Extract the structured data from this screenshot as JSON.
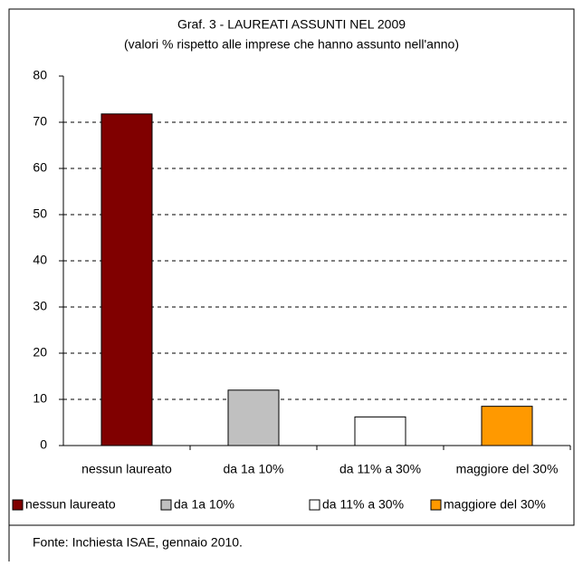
{
  "chart_data": {
    "type": "bar",
    "title": "Graf. 3 - LAUREATI ASSUNTI NEL 2009",
    "subtitle": "(valori % rispetto alle imprese che hanno assunto nell'anno)",
    "categories": [
      "nessun laureato",
      "da 1a 10%",
      "da 11% a 30%",
      "maggiore del 30%"
    ],
    "values": [
      71.8,
      12,
      6.2,
      8.5
    ],
    "colors": [
      "#800000",
      "#c0c0c0",
      "#ffffff",
      "#ff9900"
    ],
    "ylim": [
      0,
      80
    ],
    "yticks": [
      0,
      10,
      20,
      30,
      40,
      50,
      60,
      70,
      80
    ],
    "grid": true,
    "source": "Fonte: Inchiesta ISAE, gennaio 2010."
  }
}
